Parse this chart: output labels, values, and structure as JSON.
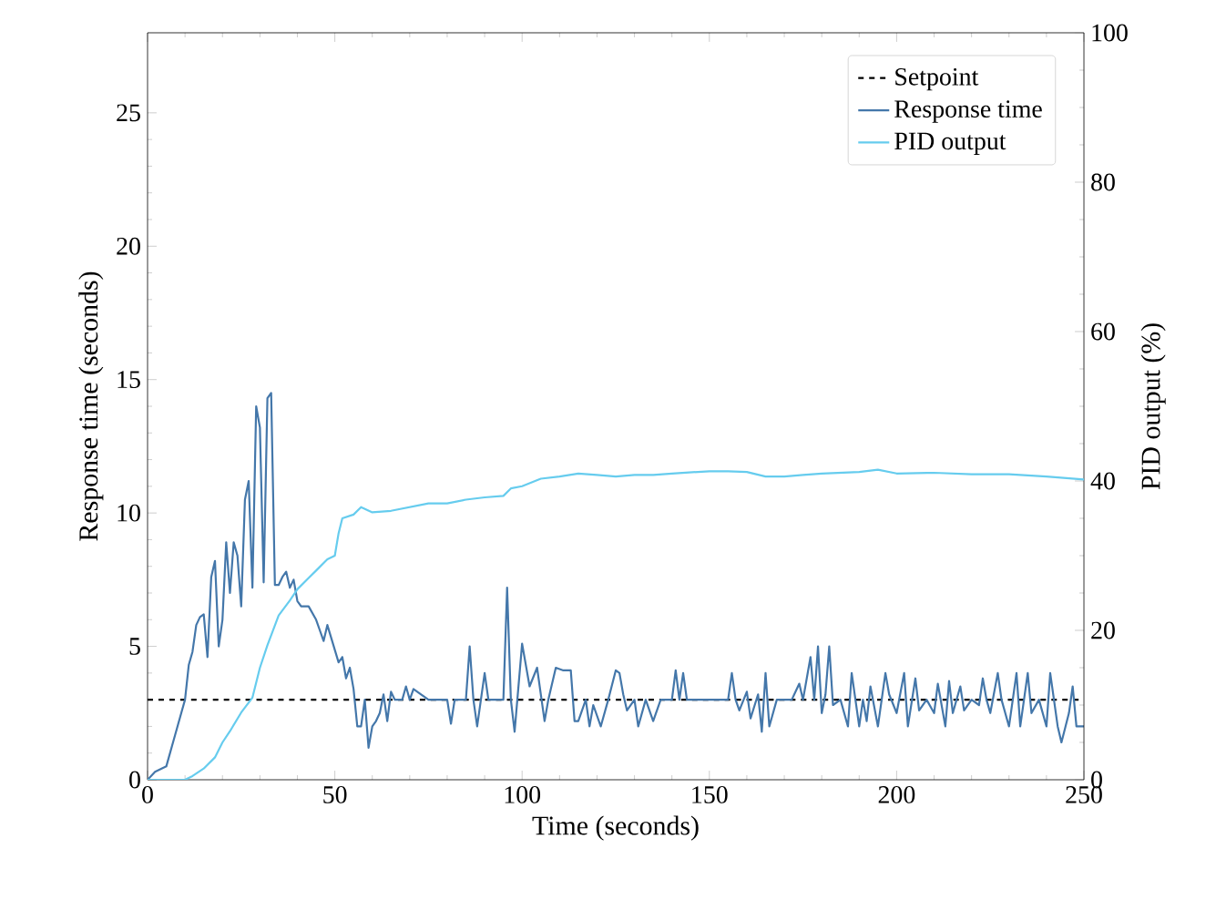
{
  "chart_data": {
    "type": "line",
    "xlabel": "Time (seconds)",
    "ylabel": "Response time (seconds)",
    "y2label": "PID output (%)",
    "xlim": [
      0,
      250
    ],
    "ylim": [
      0,
      28
    ],
    "y2lim": [
      0,
      100
    ],
    "xticks": [
      0,
      50,
      100,
      150,
      200,
      250
    ],
    "yticks": [
      0,
      5,
      10,
      15,
      20,
      25
    ],
    "y2ticks": [
      0,
      20,
      40,
      60,
      80,
      100
    ],
    "legend": "top right",
    "grid": false,
    "series": [
      {
        "name": "Setpoint",
        "color": "#000000",
        "line_style": "dashed",
        "x": [
          0,
          250
        ],
        "values": [
          3,
          3
        ]
      },
      {
        "name": "Response time",
        "color": "#4477aa",
        "line_style": "solid",
        "x": [
          0,
          2,
          5,
          7,
          9,
          10,
          11,
          12,
          13,
          14,
          15,
          16,
          17,
          18,
          19,
          20,
          21,
          22,
          23,
          24,
          25,
          26,
          27,
          28,
          29,
          30,
          31,
          32,
          33,
          34,
          35,
          36,
          37,
          38,
          39,
          40,
          41,
          43,
          45,
          46,
          47,
          48,
          49,
          50,
          51,
          52,
          53,
          54,
          55,
          56,
          57,
          58,
          59,
          60,
          61,
          62,
          63,
          64,
          65,
          66,
          67,
          68,
          69,
          70,
          71,
          72,
          75,
          80,
          81,
          82,
          85,
          86,
          87,
          88,
          90,
          91,
          95,
          96,
          97,
          98,
          100,
          102,
          104,
          106,
          107,
          109,
          111,
          113,
          114,
          115,
          117,
          118,
          119,
          121,
          123,
          125,
          126,
          127,
          128,
          130,
          131,
          133,
          135,
          137,
          140,
          141,
          142,
          143,
          144,
          150,
          155,
          156,
          157,
          158,
          160,
          161,
          163,
          164,
          165,
          166,
          168,
          172,
          174,
          175,
          177,
          178,
          179,
          180,
          181,
          182,
          183,
          185,
          187,
          188,
          190,
          191,
          192,
          193,
          195,
          197,
          198,
          200,
          202,
          203,
          205,
          206,
          208,
          210,
          211,
          213,
          214,
          215,
          217,
          218,
          220,
          222,
          223,
          224,
          225,
          227,
          228,
          230,
          232,
          233,
          235,
          236,
          238,
          240,
          241,
          243,
          244,
          246,
          247,
          248,
          250
        ],
        "values": [
          0,
          0.3,
          0.5,
          1.5,
          2.5,
          3,
          4.3,
          4.8,
          5.8,
          6.1,
          6.2,
          4.6,
          7.6,
          8.2,
          5.0,
          6,
          8.9,
          7.0,
          8.9,
          8.4,
          6.5,
          10.5,
          11.2,
          7.2,
          14.0,
          13.2,
          7.4,
          14.3,
          14.5,
          7.3,
          7.3,
          7.6,
          7.8,
          7.2,
          7.5,
          6.7,
          6.5,
          6.5,
          6.0,
          5.6,
          5.2,
          5.8,
          null,
          null,
          4.4,
          4.6,
          3.8,
          4.2,
          3.4,
          2.0,
          2.0,
          3.0,
          1.2,
          2.0,
          2.2,
          2.5,
          3.2,
          2.2,
          3.3,
          3.0,
          3.0,
          3.0,
          3.5,
          3.0,
          3.4,
          3.3,
          3.0,
          3.0,
          2.1,
          3.0,
          3.0,
          5.0,
          3.0,
          2.0,
          4.0,
          3.0,
          3.0,
          7.2,
          3.0,
          1.8,
          5.1,
          3.5,
          4.2,
          2.2,
          3.0,
          4.2,
          4.1,
          4.1,
          2.2,
          2.2,
          3.0,
          2.0,
          2.8,
          2.0,
          3.0,
          4.1,
          4.0,
          3.2,
          2.6,
          3.0,
          2.0,
          3.0,
          2.2,
          3.0,
          3.0,
          4.1,
          3.0,
          4.0,
          3.0,
          3.0,
          3.0,
          4.0,
          3.0,
          2.6,
          3.3,
          2.3,
          3.2,
          1.8,
          4.0,
          2.0,
          3.0,
          3.0,
          3.6,
          3.0,
          4.6,
          3.0,
          5.0,
          2.5,
          3.2,
          5.0,
          2.8,
          3.0,
          2.0,
          4.0,
          2.0,
          3.0,
          2.2,
          3.5,
          2.0,
          4.0,
          3.2,
          2.5,
          4.0,
          2.0,
          3.8,
          2.6,
          3.0,
          2.5,
          3.6,
          2.0,
          3.7,
          2.5,
          3.5,
          2.6,
          3.0,
          2.8,
          3.8,
          3.0,
          2.5,
          4.0,
          3.0,
          2.0,
          4.0,
          2.0,
          4.0,
          2.5,
          3.0,
          2.0,
          4.0,
          2.0,
          1.4,
          2.5,
          3.5,
          2.0,
          2.0
        ]
      },
      {
        "name": "PID output",
        "color": "#66ccee",
        "line_style": "solid",
        "axis": "y2",
        "x": [
          0,
          10,
          12,
          15,
          18,
          20,
          22,
          25,
          28,
          30,
          32,
          35,
          38,
          40,
          43,
          45,
          48,
          50,
          51,
          52,
          55,
          57,
          60,
          65,
          70,
          75,
          80,
          85,
          90,
          95,
          97,
          100,
          105,
          110,
          115,
          120,
          125,
          130,
          135,
          140,
          150,
          155,
          160,
          165,
          170,
          175,
          180,
          190,
          195,
          200,
          210,
          220,
          230,
          240,
          245,
          250
        ],
        "values": [
          0,
          0,
          0.5,
          1.5,
          3,
          5,
          6.5,
          9,
          11,
          15,
          18,
          22,
          24,
          25.5,
          27,
          28,
          29.5,
          30,
          33,
          35,
          35.5,
          36.5,
          35.8,
          36,
          36.5,
          37,
          37,
          37.5,
          37.8,
          38,
          39,
          39.3,
          40.3,
          40.6,
          41,
          40.8,
          40.6,
          40.8,
          40.8,
          41,
          41.3,
          41.3,
          41.2,
          40.6,
          40.6,
          40.8,
          41,
          41.2,
          41.5,
          41,
          41.1,
          40.9,
          40.9,
          40.6,
          40.4,
          40.2
        ]
      }
    ]
  }
}
